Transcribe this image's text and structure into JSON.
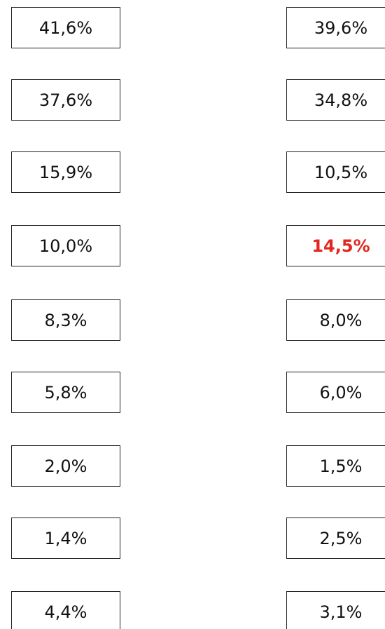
{
  "columns": [
    {
      "items": [
        {
          "text": "41,6%"
        },
        {
          "text": "37,6%"
        },
        {
          "text": "15,9%"
        },
        {
          "text": "10,0%"
        },
        {
          "text": "8,3%"
        },
        {
          "text": "5,8%"
        },
        {
          "text": "2,0%"
        },
        {
          "text": "1,4%"
        },
        {
          "text": "4,4%"
        }
      ]
    },
    {
      "items": [
        {
          "text": "39,6%"
        },
        {
          "text": "34,8%"
        },
        {
          "text": "10,5%"
        },
        {
          "text": "14,5%",
          "color": "#e3261f"
        },
        {
          "text": "8,0%"
        },
        {
          "text": "6,0%"
        },
        {
          "text": "1,5%"
        },
        {
          "text": "2,5%"
        },
        {
          "text": "3,1%"
        }
      ]
    }
  ]
}
